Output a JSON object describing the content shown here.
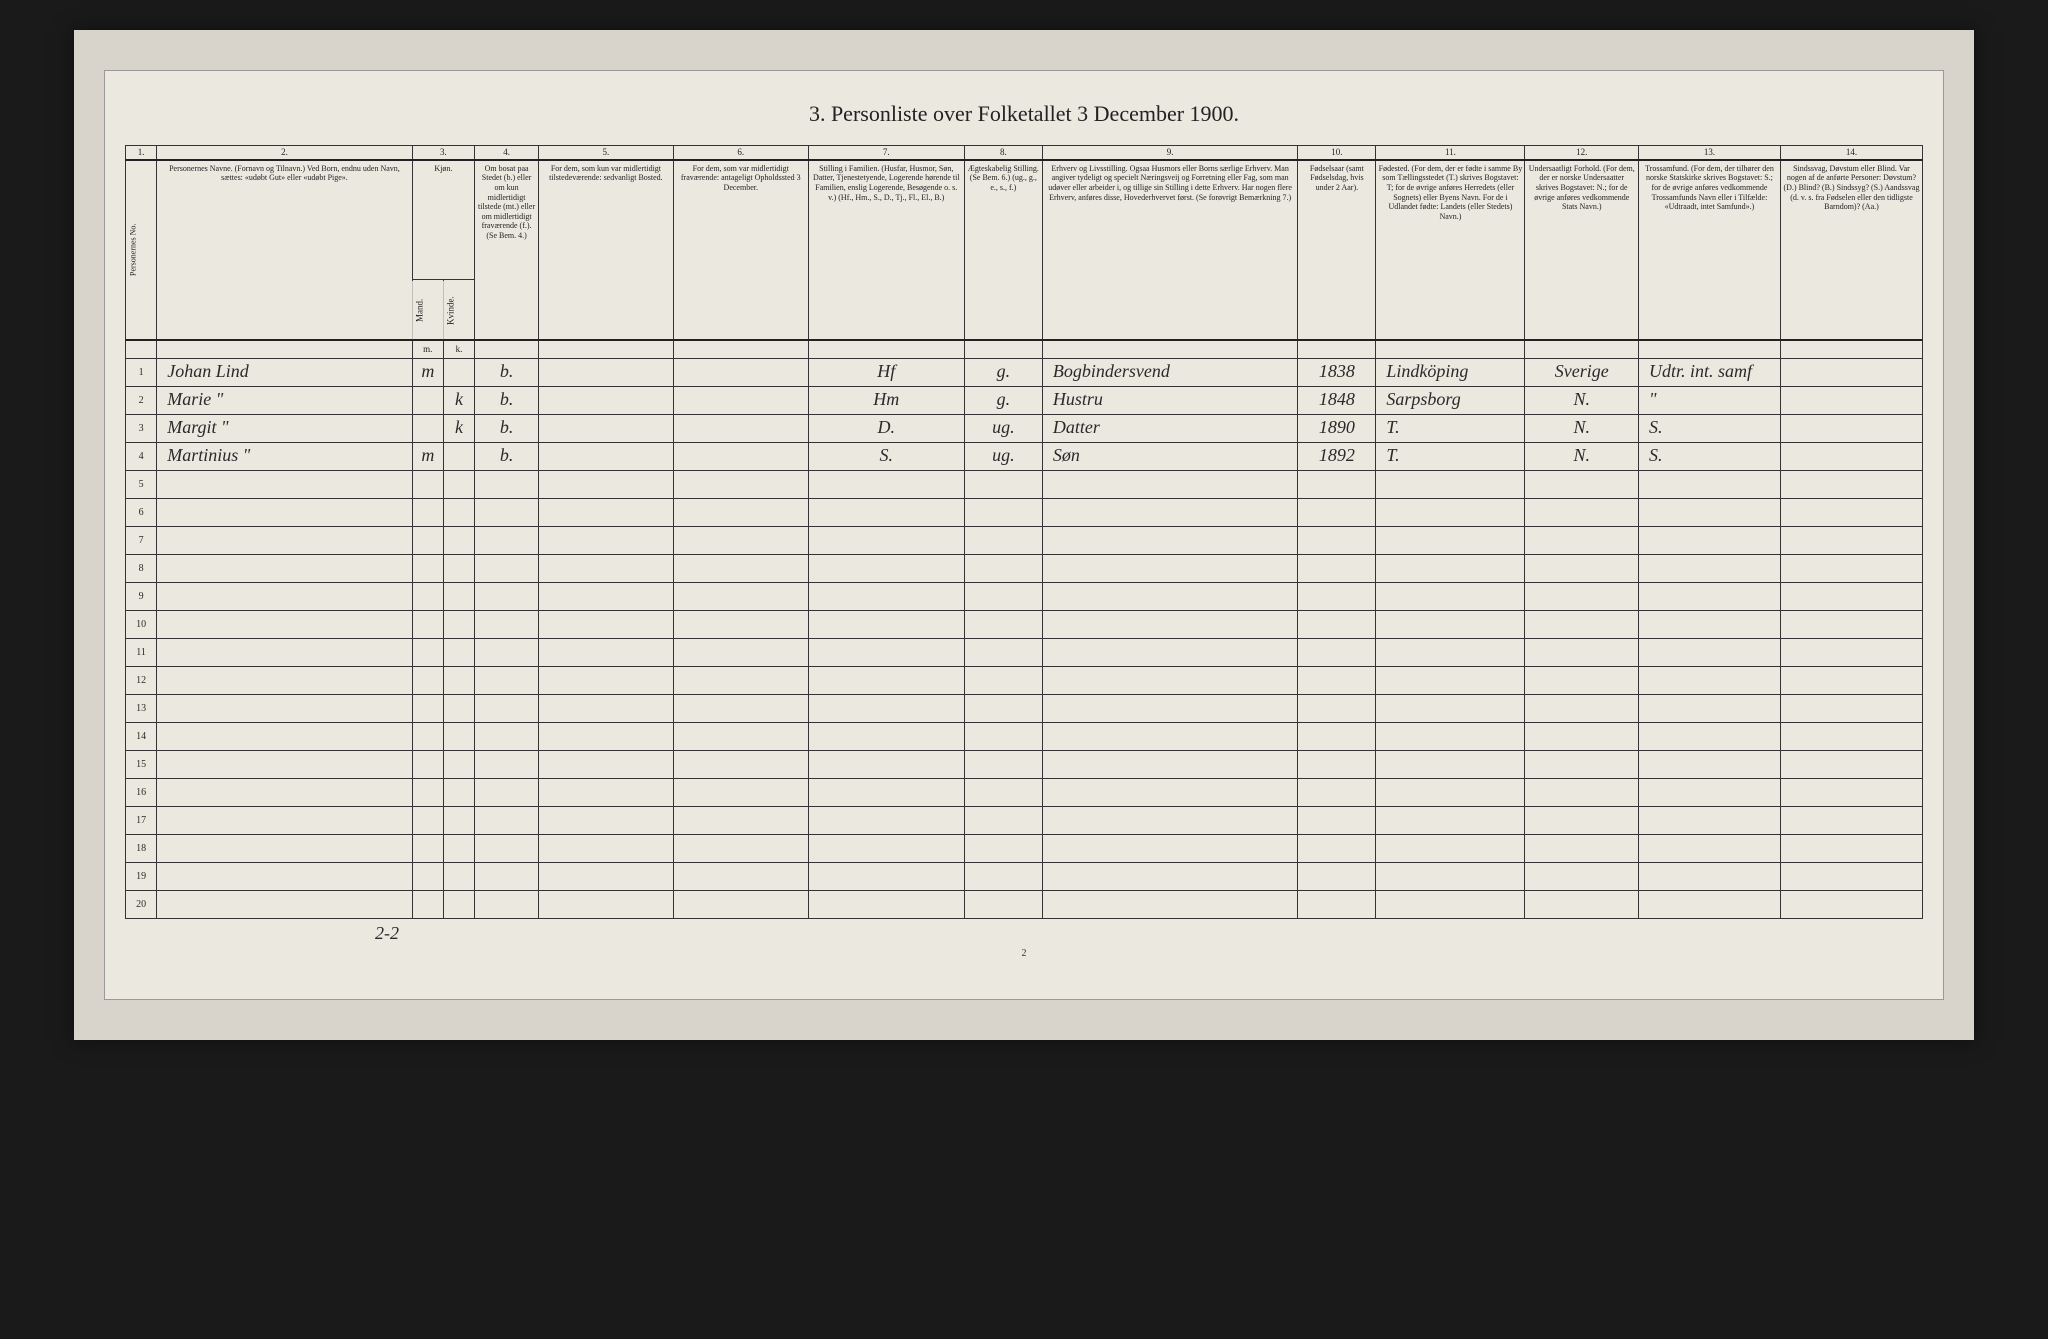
{
  "title": "3. Personliste over Folketallet 3 December 1900.",
  "colNumbers": [
    "1.",
    "2.",
    "3.",
    "4.",
    "",
    "5.",
    "6.",
    "7.",
    "8.",
    "9.",
    "10.",
    "11.",
    "12.",
    "13.",
    "14."
  ],
  "headers": {
    "c1": "Personernes No.",
    "c2": "Personernes Navne.\n(Fornavn og Tilnavn.)\nVed Born, endnu uden Navn, sættes: «udøbt Gut» eller «udøbt Pige».",
    "c3a": "Kjøn.",
    "c3m": "Mand.",
    "c3k": "Kvinde.",
    "c4": "Om bosat paa Stedet (b.) eller om kun midlertidigt tilstede (mt.) eller om midlertidigt fraværende (f.). (Se Bem. 4.)",
    "c5": "For dem, som kun var midlertidigt tilstedeværende:\nsedvanligt Bosted.",
    "c6": "For dem, som var midlertidigt fraværende:\nantageligt Opholdssted 3 December.",
    "c7": "Stilling i Familien.\n(Husfar, Husmor, Søn, Datter, Tjenestetyende, Logerende hørende til Familien, enslig Logerende, Besøgende o. s. v.)\n(Hf., Hm., S., D., Tj., Fl., El., B.)",
    "c8": "Ægteskabelig Stilling.\n(Se Bem. 6.)\n(ug., g., e., s., f.)",
    "c9": "Erhverv og Livsstilling.\nOgsaa Husmors eller Borns særlige Erhverv. Man angiver tydeligt og specielt Næringsveij og Forretning eller Fag, som man udøver eller arbeider i, og tillige sin Stilling i dette Erhverv. Har nogen flere Erhverv, anføres disse, Hovederhvervet først.\n(Se forøvrigt Bemærkning 7.)",
    "c10": "Fødselsaar\n(samt Fødselsdag, hvis under 2 Aar).",
    "c11": "Fødested.\n(For dem, der er fødte i samme By som Tællingsstedet (T.) skrives Bogstavet: T; for de øvrige anføres Herredets (eller Sognets) eller Byens Navn. For de i Udlandet fødte: Landets (eller Stedets) Navn.)",
    "c12": "Undersaatligt Forhold.\n(For dem, der er norske Undersaatter skrives Bogstavet: N.; for de øvrige anføres vedkommende Stats Navn.)",
    "c13": "Trossamfund.\n(For dem, der tilhører den norske Statskirke skrives Bogstavet: S.; for de øvrige anføres vedkommende Trossamfunds Navn eller i Tilfælde: «Udtraadt, intet Samfund».)",
    "c14": "Sindssvag, Døvstum eller Blind.\nVar nogen af de anførte Personer:\nDøvstum? (D.)\nBlind? (B.)\nSindssyg? (S.)\nAandssvag (d. v. s. fra Fødselen eller den tidligste Barndom)? (Aa.)"
  },
  "subMK": {
    "m": "m.",
    "k": "k."
  },
  "rows": [
    {
      "n": "1",
      "name": "Johan Lind",
      "m": "m",
      "k": "",
      "b": "b.",
      "c5": "",
      "c6": "",
      "c7": "Hf",
      "c8": "g.",
      "c9": "Bogbindersvend",
      "c10": "1838",
      "c11": "Lindköping",
      "c12": "Sverige",
      "c13": "Udtr. int. samf",
      "c14": ""
    },
    {
      "n": "2",
      "name": "Marie   \"",
      "m": "",
      "k": "k",
      "b": "b.",
      "c5": "",
      "c6": "",
      "c7": "Hm",
      "c8": "g.",
      "c9": "Hustru",
      "c10": "1848",
      "c11": "Sarpsborg",
      "c12": "N.",
      "c13": "\"",
      "c14": ""
    },
    {
      "n": "3",
      "name": "Margit   \"",
      "m": "",
      "k": "k",
      "b": "b.",
      "c5": "",
      "c6": "",
      "c7": "D.",
      "c8": "ug.",
      "c9": "Datter",
      "c10": "1890",
      "c11": "T.",
      "c12": "N.",
      "c13": "S.",
      "c14": ""
    },
    {
      "n": "4",
      "name": "Martinius \"",
      "m": "m",
      "k": "",
      "b": "b.",
      "c5": "",
      "c6": "",
      "c7": "S.",
      "c8": "ug.",
      "c9": "Søn",
      "c10": "1892",
      "c11": "T.",
      "c12": "N.",
      "c13": "S.",
      "c14": ""
    }
  ],
  "emptyRowCount": 16,
  "footerTally": "2-2",
  "pageNumber": "2"
}
